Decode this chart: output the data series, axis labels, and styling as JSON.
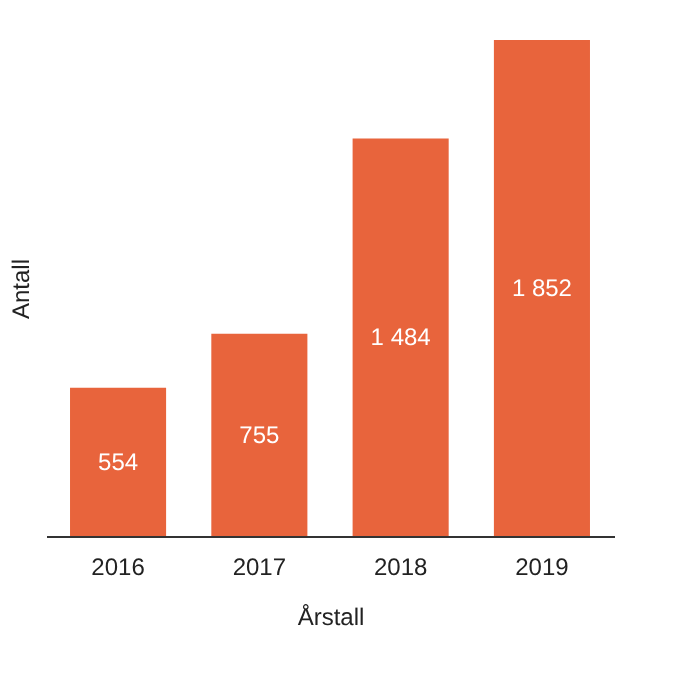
{
  "chart_data": {
    "type": "bar",
    "xlabel": "Årstall",
    "ylabel": "Antall",
    "categories": [
      "2016",
      "2017",
      "2018",
      "2019"
    ],
    "values": [
      554,
      755,
      1484,
      1852
    ],
    "value_labels": [
      "554",
      "755",
      "1 484",
      "1 852"
    ],
    "color": "#e8643c",
    "grid": false
  }
}
